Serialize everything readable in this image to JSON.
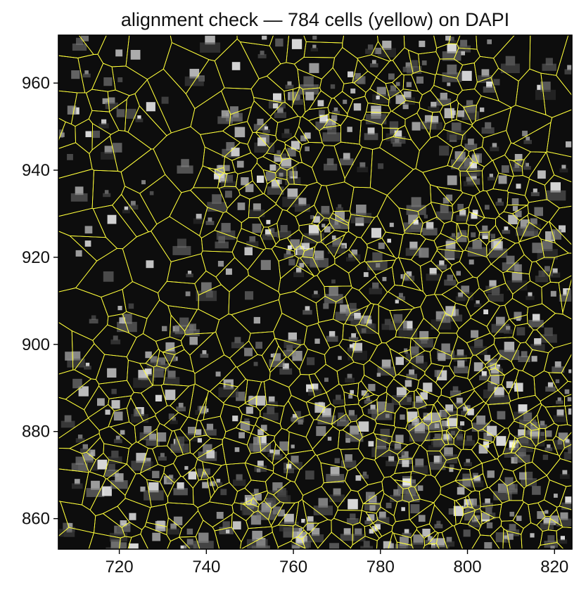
{
  "chart_data": {
    "type": "heatmap",
    "title": "alignment check — 784 cells (yellow) on DAPI",
    "xlabel": "",
    "ylabel": "",
    "xlim": [
      706,
      824
    ],
    "ylim": [
      971,
      853
    ],
    "y_axis_inverted": true,
    "x_ticks": [
      720,
      740,
      760,
      780,
      800,
      820
    ],
    "x_tick_labels": [
      "720",
      "740",
      "760",
      "780",
      "800",
      "820"
    ],
    "y_ticks": [
      860,
      880,
      900,
      920,
      940,
      960
    ],
    "y_tick_labels": [
      "860",
      "880",
      "900",
      "920",
      "940",
      "960"
    ],
    "background_image": "DAPI grayscale nuclei image",
    "overlay": "cell segmentation boundaries",
    "cell_count": 784,
    "overlay_color": "#ffff3a",
    "image_colormap": "gray",
    "grid": false,
    "legend": "none"
  }
}
